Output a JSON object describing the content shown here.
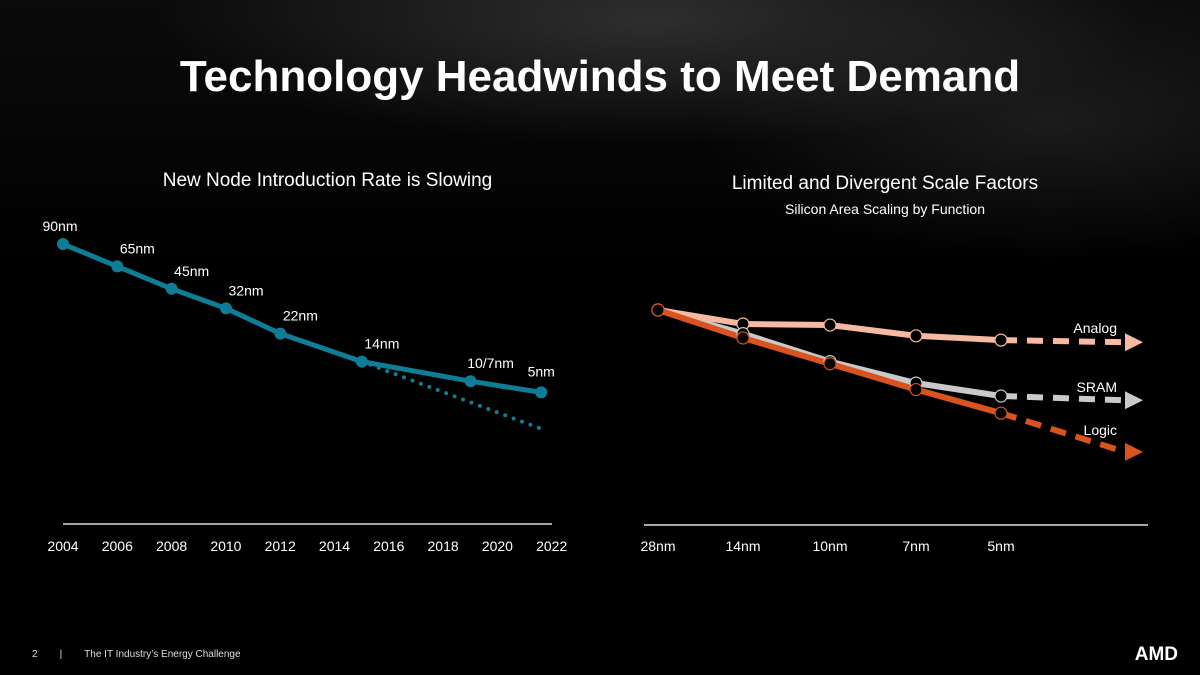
{
  "title": "Technology Headwinds to Meet Demand",
  "footer": {
    "page": "2",
    "separator": "|",
    "text": "The IT Industry’s Energy Challenge",
    "logo": "AMD"
  },
  "chart_data": [
    {
      "type": "line",
      "title": "New Node Introduction Rate is Slowing",
      "xlabel": "",
      "ylabel": "",
      "x_ticks": [
        "2004",
        "2006",
        "2008",
        "2010",
        "2012",
        "2014",
        "2016",
        "2018",
        "2020",
        "2022"
      ],
      "xlim": [
        2004,
        2022
      ],
      "ylim": [
        0,
        105
      ],
      "y_note_unlabeled": true,
      "color": "#0f7d95",
      "series": [
        {
          "points": [
            {
              "x": 2004,
              "y": 100,
              "label": "90nm"
            },
            {
              "x": 2006,
              "y": 92,
              "label": "65nm"
            },
            {
              "x": 2008,
              "y": 84,
              "label": "45nm"
            },
            {
              "x": 2010,
              "y": 77,
              "label": "32nm"
            },
            {
              "x": 2012,
              "y": 68,
              "label": "22nm"
            },
            {
              "x": 2015,
              "y": 58,
              "label": "14nm"
            },
            {
              "x": 2019,
              "y": 51,
              "label": "10/7nm"
            },
            {
              "x": 2021.6,
              "y": 47,
              "label": "5nm"
            }
          ]
        },
        {
          "style": "dotted",
          "points": [
            {
              "x": 2015,
              "y": 58
            },
            {
              "x": 2021.6,
              "y": 34
            }
          ]
        }
      ]
    },
    {
      "type": "line",
      "title": "Limited and Divergent Scale Factors",
      "subtitle": "Silicon Area Scaling by Function",
      "categories": [
        "28nm",
        "14nm",
        "10nm",
        "7nm",
        "5nm"
      ],
      "ylim": [
        0,
        105
      ],
      "series": [
        {
          "name": "Analog",
          "color": "#f6b9a1",
          "values": [
            100,
            93.5,
            93,
            88,
            86
          ],
          "projection": 85
        },
        {
          "name": "SRAM",
          "color": "#c9c9c9",
          "values": [
            100,
            89,
            76,
            66,
            60
          ],
          "projection": 58
        },
        {
          "name": "Logic",
          "color": "#d8531d",
          "values": [
            100,
            87,
            75,
            63,
            52
          ],
          "projection": 34
        }
      ]
    }
  ]
}
